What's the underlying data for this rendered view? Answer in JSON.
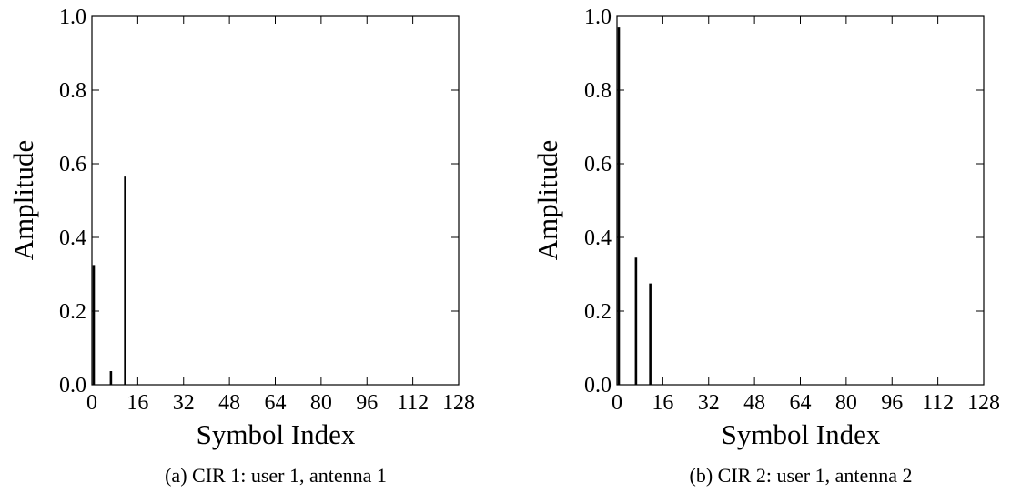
{
  "figure": {
    "panels": [
      {
        "caption": "(a) CIR 1: user 1, antenna 1"
      },
      {
        "caption": "(b) CIR 2: user 1, antenna 2"
      }
    ]
  },
  "chart_data": [
    {
      "type": "bar",
      "title": "",
      "caption": "(a) CIR 1: user 1, antenna 1",
      "xlabel": "Symbol Index",
      "ylabel": "Amplitude",
      "xlim": [
        0,
        128
      ],
      "ylim": [
        0,
        1.0
      ],
      "xticks": [
        "0",
        "16",
        "32",
        "48",
        "64",
        "80",
        "96",
        "112",
        "128"
      ],
      "xtick_values": [
        0,
        16,
        32,
        48,
        64,
        80,
        96,
        112,
        128
      ],
      "yticks": [
        "0.0",
        "0.2",
        "0.4",
        "0.6",
        "0.8",
        "1.0"
      ],
      "ytick_values": [
        0,
        0.2,
        0.4,
        0.6,
        0.8,
        1.0
      ],
      "grid": false,
      "x": [
        0,
        6,
        11
      ],
      "values": [
        0.325,
        0.037,
        0.565
      ]
    },
    {
      "type": "bar",
      "title": "",
      "caption": "(b) CIR 2: user 1, antenna 2",
      "xlabel": "Symbol Index",
      "ylabel": "Amplitude",
      "xlim": [
        0,
        128
      ],
      "ylim": [
        0,
        1.0
      ],
      "xticks": [
        "0",
        "16",
        "32",
        "48",
        "64",
        "80",
        "96",
        "112",
        "128"
      ],
      "xtick_values": [
        0,
        16,
        32,
        48,
        64,
        80,
        96,
        112,
        128
      ],
      "yticks": [
        "0.0",
        "0.2",
        "0.4",
        "0.6",
        "0.8",
        "1.0"
      ],
      "ytick_values": [
        0,
        0.2,
        0.4,
        0.6,
        0.8,
        1.0
      ],
      "grid": false,
      "x": [
        0,
        6,
        11
      ],
      "values": [
        0.97,
        0.345,
        0.275
      ]
    }
  ]
}
